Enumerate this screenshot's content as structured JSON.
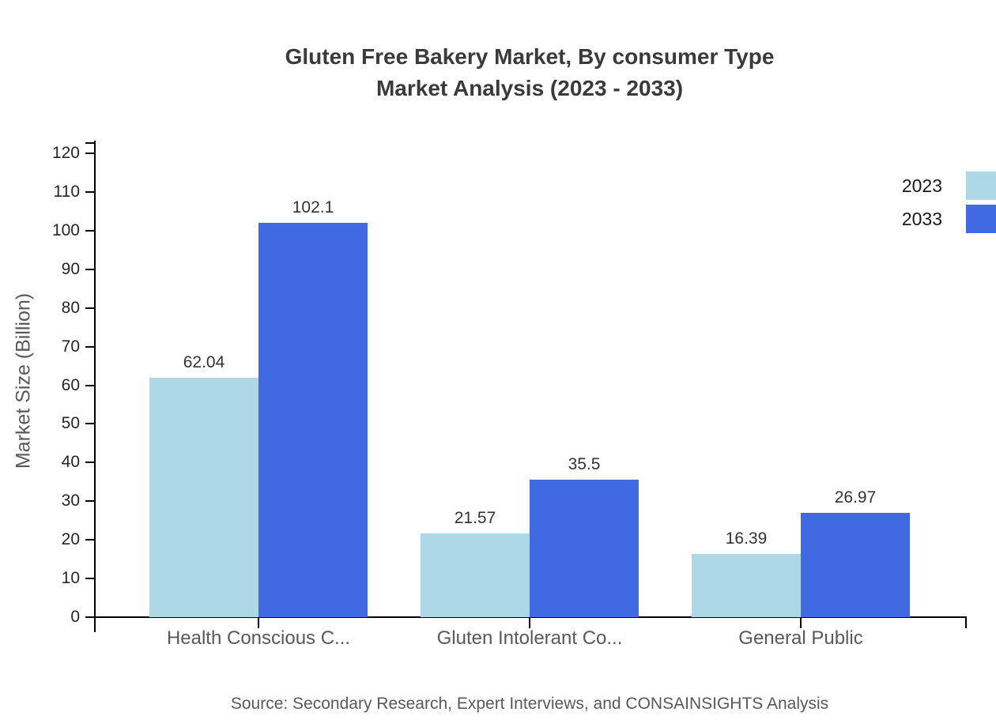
{
  "chart_data": {
    "type": "bar",
    "title_lines": [
      "Gluten Free Bakery Market, By consumer Type",
      "Market Analysis (2023 - 2033)"
    ],
    "ylabel": "Market Size (Billion)",
    "xlabel": "",
    "categories": [
      "Health Conscious C...",
      "Gluten Intolerant Co...",
      "General Public"
    ],
    "series": [
      {
        "name": "2023",
        "color": "#ADD8E6",
        "values": [
          62.04,
          21.57,
          16.39
        ]
      },
      {
        "name": "2033",
        "color": "#4169E1",
        "values": [
          102.1,
          35.5,
          26.97
        ]
      }
    ],
    "value_labels": [
      "62.04",
      "102.1",
      "21.57",
      "35.5",
      "16.39",
      "26.97"
    ],
    "ylim": [
      0,
      120
    ],
    "ytick_step": 10,
    "ytick_labels": [
      "0",
      "10",
      "20",
      "30",
      "40",
      "50",
      "60",
      "70",
      "80",
      "90",
      "100",
      "110",
      "120"
    ],
    "grid": false,
    "legend_position": "top-right",
    "source": "Source: Secondary Research, Expert Interviews, and CONSAINSIGHTS Analysis"
  },
  "colors": {
    "series_2023": "#ADD8E6",
    "series_2033": "#4169E1",
    "axis": "#000000",
    "title_text": "#3a3a3a",
    "muted_text": "#595959",
    "value_text": "#333333"
  }
}
